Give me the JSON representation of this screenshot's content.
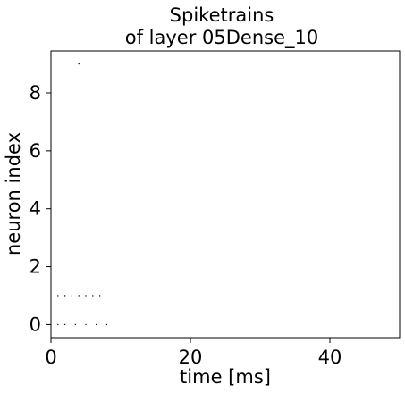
{
  "chart_data": {
    "type": "scatter",
    "title_line1": "Spiketrains",
    "title_line2": "of layer 05Dense_10",
    "xlabel": "time [ms]",
    "ylabel": "neuron index",
    "xlim": [
      0,
      50
    ],
    "ylim": [
      -0.45,
      9.45
    ],
    "xticks": [
      0,
      20,
      40
    ],
    "xtick_labels": [
      "0",
      "20",
      "40"
    ],
    "yticks": [
      0,
      2,
      4,
      6,
      8
    ],
    "ytick_labels": [
      "0",
      "2",
      "4",
      "6",
      "8"
    ],
    "grid": false,
    "series": [
      {
        "marker_color": "#000000",
        "points": [
          {
            "x": 1,
            "y": 0
          },
          {
            "x": 2,
            "y": 0
          },
          {
            "x": 3.5,
            "y": 0
          },
          {
            "x": 5,
            "y": 0
          },
          {
            "x": 6.5,
            "y": 0
          },
          {
            "x": 8,
            "y": 0
          },
          {
            "x": 1,
            "y": 1
          },
          {
            "x": 2,
            "y": 1
          },
          {
            "x": 3,
            "y": 1
          },
          {
            "x": 4,
            "y": 1
          },
          {
            "x": 5,
            "y": 1
          },
          {
            "x": 6,
            "y": 1
          },
          {
            "x": 7,
            "y": 1
          },
          {
            "x": 4,
            "y": 9
          }
        ]
      }
    ]
  }
}
